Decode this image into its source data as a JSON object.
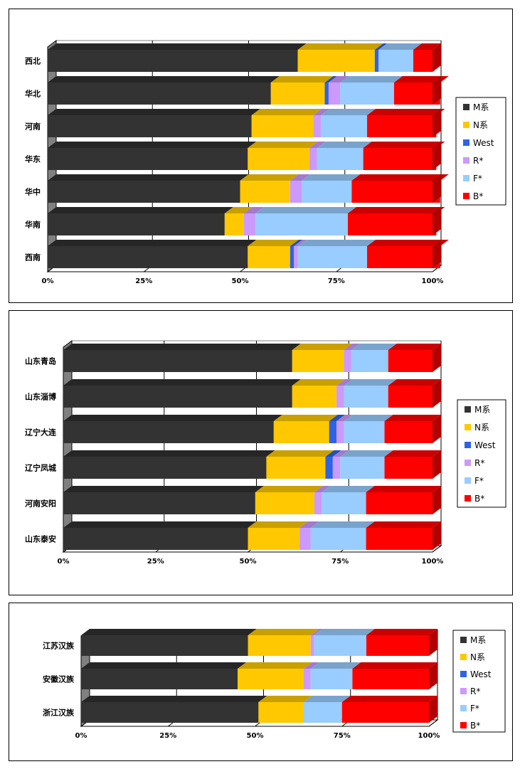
{
  "series_colors": {
    "M系": {
      "front": "#333333",
      "top": "#262626",
      "side": "#1a1a1a"
    },
    "N系": {
      "front": "#FFC800",
      "top": "#C9A000",
      "side": "#B08A00"
    },
    "West": {
      "front": "#2E63E6",
      "top": "#2450B8",
      "side": "#1C3F92"
    },
    "R*": {
      "front": "#CC99FF",
      "top": "#A37ACC",
      "side": "#8F6BB3"
    },
    "F*": {
      "front": "#99CCFF",
      "top": "#7AA3CC",
      "side": "#6B8FB3"
    },
    "B*": {
      "front": "#FF0000",
      "top": "#CC0000",
      "side": "#B00000"
    }
  },
  "chart_data": [
    {
      "type": "bar",
      "stacked": "percent",
      "orientation": "horizontal",
      "legend_position": "right",
      "x_ticks": [
        "0%",
        "25%",
        "50%",
        "75%",
        "100%"
      ],
      "categories": [
        "西北",
        "华北",
        "河南",
        "华东",
        "华中",
        "华南",
        "西南"
      ],
      "series": [
        {
          "name": "M系",
          "values": [
            65,
            58,
            53,
            52,
            50,
            46,
            52
          ]
        },
        {
          "name": "N系",
          "values": [
            20,
            14,
            16,
            16,
            13,
            5,
            11
          ]
        },
        {
          "name": "West",
          "values": [
            1,
            1,
            0,
            0,
            0,
            0,
            1
          ]
        },
        {
          "name": "R*",
          "values": [
            0,
            3,
            2,
            2,
            3,
            3,
            1
          ]
        },
        {
          "name": "F*",
          "values": [
            9,
            14,
            12,
            12,
            13,
            24,
            18
          ]
        },
        {
          "name": "B*",
          "values": [
            5,
            12,
            18,
            19,
            23,
            23,
            19
          ]
        }
      ]
    },
    {
      "type": "bar",
      "stacked": "percent",
      "orientation": "horizontal",
      "legend_position": "right",
      "x_ticks": [
        "0%",
        "25%",
        "50%",
        "75%",
        "100%"
      ],
      "categories": [
        "山东青岛",
        "山东淄博",
        "辽宁大连",
        "辽宁凤城",
        "河南安阳",
        "山东泰安"
      ],
      "series": [
        {
          "name": "M系",
          "values": [
            62,
            62,
            57,
            55,
            52,
            50
          ]
        },
        {
          "name": "N系",
          "values": [
            14,
            12,
            15,
            16,
            16,
            14
          ]
        },
        {
          "name": "West",
          "values": [
            0,
            0,
            2,
            2,
            0,
            0
          ]
        },
        {
          "name": "R*",
          "values": [
            2,
            2,
            2,
            2,
            2,
            3
          ]
        },
        {
          "name": "F*",
          "values": [
            10,
            12,
            11,
            12,
            12,
            15
          ]
        },
        {
          "name": "B*",
          "values": [
            12,
            12,
            13,
            13,
            18,
            18
          ]
        }
      ]
    },
    {
      "type": "bar",
      "stacked": "percent",
      "orientation": "horizontal",
      "legend_position": "right",
      "x_ticks": [
        "0%",
        "25%",
        "50%",
        "75%",
        "100%"
      ],
      "categories": [
        "江苏汉族",
        "安徽汉族",
        "浙江汉族"
      ],
      "series": [
        {
          "name": "M系",
          "values": [
            48,
            45,
            51
          ]
        },
        {
          "name": "N系",
          "values": [
            18,
            19,
            13
          ]
        },
        {
          "name": "West",
          "values": [
            0,
            0,
            0
          ]
        },
        {
          "name": "R*",
          "values": [
            1,
            2,
            0
          ]
        },
        {
          "name": "F*",
          "values": [
            15,
            12,
            11
          ]
        },
        {
          "name": "B*",
          "values": [
            18,
            22,
            25
          ]
        }
      ]
    }
  ]
}
